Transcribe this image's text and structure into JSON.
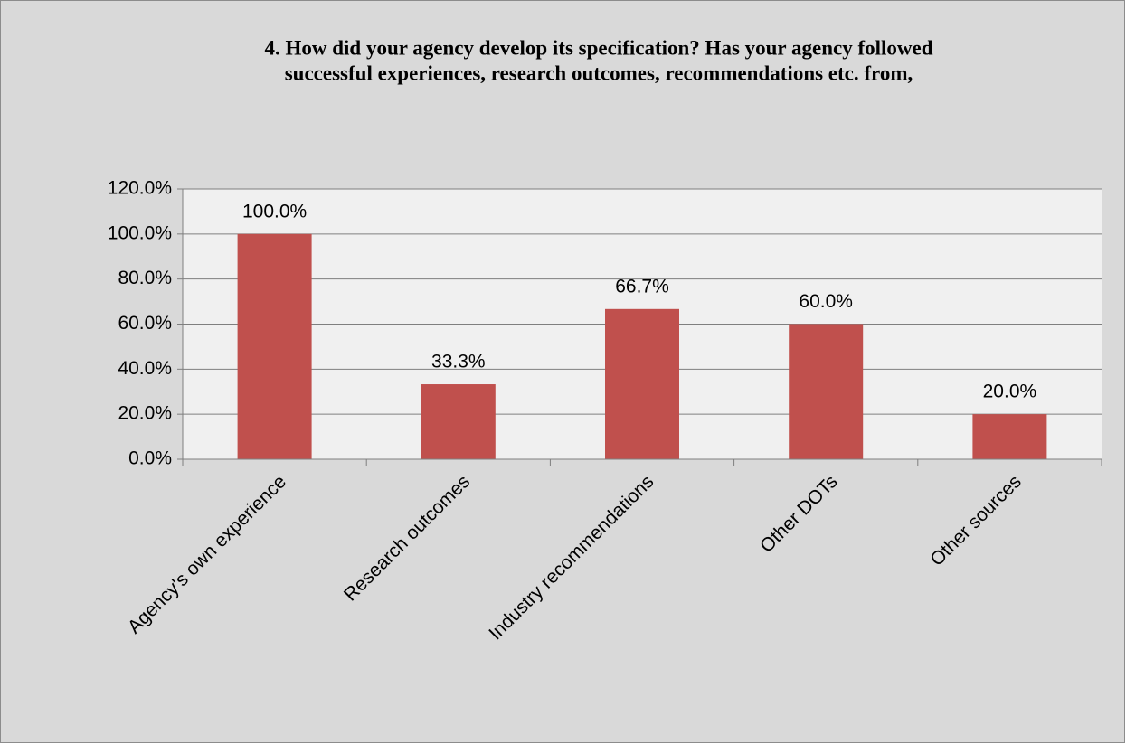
{
  "chart_data": {
    "type": "bar",
    "title": [
      "4. How did your agency develop its specification? Has your agency followed",
      "successful experiences, research outcomes, recommendations etc. from,"
    ],
    "categories": [
      "Agency's own experience",
      "Research outcomes",
      "Industry recommendations",
      "Other DOTs",
      "Other sources"
    ],
    "values": [
      100.0,
      33.3,
      66.7,
      60.0,
      20.0
    ],
    "value_labels": [
      "100.0%",
      "33.3%",
      "66.7%",
      "60.0%",
      "20.0%"
    ],
    "color": "#c0504d",
    "ylim": [
      0,
      120
    ],
    "yticks": [
      {
        "value": 0,
        "label": "0.0%"
      },
      {
        "value": 20,
        "label": "20.0%"
      },
      {
        "value": 40,
        "label": "40.0%"
      },
      {
        "value": 60,
        "label": "60.0%"
      },
      {
        "value": 80,
        "label": "80.0%"
      },
      {
        "value": 100,
        "label": "100.0%"
      },
      {
        "value": 120,
        "label": "120.0%"
      }
    ],
    "grid": true
  }
}
